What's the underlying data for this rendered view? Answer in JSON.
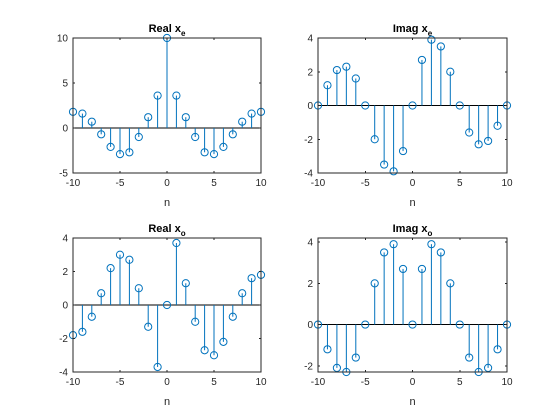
{
  "figure": {
    "background": "#ffffff"
  },
  "colors": {
    "stem": "#0072bd",
    "axis": "#262626",
    "baseline": "#000000"
  },
  "chart_data": [
    {
      "type": "stem",
      "title": "Real x",
      "title_subscript": "e",
      "xlabel": "n",
      "xlim": [
        -10,
        10
      ],
      "ylim": [
        -5,
        10
      ],
      "xticks": [
        -10,
        -5,
        0,
        5,
        10
      ],
      "yticks": [
        -5,
        0,
        5,
        10
      ],
      "xtick_labels": [
        "-10",
        "-5",
        "0",
        "5",
        "10"
      ],
      "ytick_labels": [
        "-5",
        "0",
        "5",
        "10"
      ],
      "x": [
        -10,
        -9,
        -8,
        -7,
        -6,
        -5,
        -4,
        -3,
        -2,
        -1,
        0,
        1,
        2,
        3,
        4,
        5,
        6,
        7,
        8,
        9,
        10
      ],
      "y": [
        1.8,
        1.6,
        0.7,
        -0.7,
        -2.1,
        -2.9,
        -2.7,
        -1.0,
        1.2,
        3.6,
        10.0,
        3.6,
        1.2,
        -1.0,
        -2.7,
        -2.9,
        -2.1,
        -0.7,
        0.7,
        1.6,
        1.8
      ]
    },
    {
      "type": "stem",
      "title": "Imag x",
      "title_subscript": "e",
      "xlabel": "n",
      "xlim": [
        -10,
        10
      ],
      "ylim": [
        -4,
        4
      ],
      "xticks": [
        -10,
        -5,
        0,
        5,
        10
      ],
      "yticks": [
        -4,
        -2,
        0,
        2,
        4
      ],
      "xtick_labels": [
        "-10",
        "-5",
        "0",
        "5",
        "10"
      ],
      "ytick_labels": [
        "-4",
        "-2",
        "0",
        "2",
        "4"
      ],
      "x": [
        -10,
        -9,
        -8,
        -7,
        -6,
        -5,
        -4,
        -3,
        -2,
        -1,
        0,
        1,
        2,
        3,
        4,
        5,
        6,
        7,
        8,
        9,
        10
      ],
      "y": [
        0.0,
        1.2,
        2.1,
        2.3,
        1.6,
        0.0,
        -2.0,
        -3.5,
        -3.9,
        -2.7,
        0.0,
        2.7,
        3.9,
        3.5,
        2.0,
        0.0,
        -1.6,
        -2.3,
        -2.1,
        -1.2,
        0.0
      ]
    },
    {
      "type": "stem",
      "title": "Real x",
      "title_subscript": "o",
      "xlabel": "n",
      "xlim": [
        -10,
        10
      ],
      "ylim": [
        -4,
        4
      ],
      "xticks": [
        -10,
        -5,
        0,
        5,
        10
      ],
      "yticks": [
        -4,
        -2,
        0,
        2,
        4
      ],
      "xtick_labels": [
        "-10",
        "-5",
        "0",
        "5",
        "10"
      ],
      "ytick_labels": [
        "-4",
        "-2",
        "0",
        "2",
        "4"
      ],
      "x": [
        -10,
        -9,
        -8,
        -7,
        -6,
        -5,
        -4,
        -3,
        -2,
        -1,
        0,
        1,
        2,
        3,
        4,
        5,
        6,
        7,
        8,
        9,
        10
      ],
      "y": [
        -1.8,
        -1.6,
        -0.7,
        0.7,
        2.2,
        3.0,
        2.7,
        1.0,
        -1.3,
        -3.7,
        0.0,
        3.7,
        1.3,
        -1.0,
        -2.7,
        -3.0,
        -2.2,
        -0.7,
        0.7,
        1.6,
        1.8
      ]
    },
    {
      "type": "stem",
      "title": "Imag x",
      "title_subscript": "o",
      "xlabel": "n",
      "xlim": [
        -10,
        10
      ],
      "ylim": [
        -2.3,
        4.2
      ],
      "xticks": [
        -10,
        -5,
        0,
        5,
        10
      ],
      "yticks": [
        -2,
        0,
        2,
        4
      ],
      "xtick_labels": [
        "-10",
        "-5",
        "0",
        "5",
        "10"
      ],
      "ytick_labels": [
        "-2",
        "0",
        "2",
        "4"
      ],
      "x": [
        -10,
        -9,
        -8,
        -7,
        -6,
        -5,
        -4,
        -3,
        -2,
        -1,
        0,
        1,
        2,
        3,
        4,
        5,
        6,
        7,
        8,
        9,
        10
      ],
      "y": [
        0.0,
        -1.2,
        -2.1,
        -2.3,
        -1.6,
        0.0,
        2.0,
        3.5,
        3.9,
        2.7,
        0.0,
        2.7,
        3.9,
        3.5,
        2.0,
        0.0,
        -1.6,
        -2.3,
        -2.1,
        -1.2,
        0.0
      ]
    }
  ]
}
